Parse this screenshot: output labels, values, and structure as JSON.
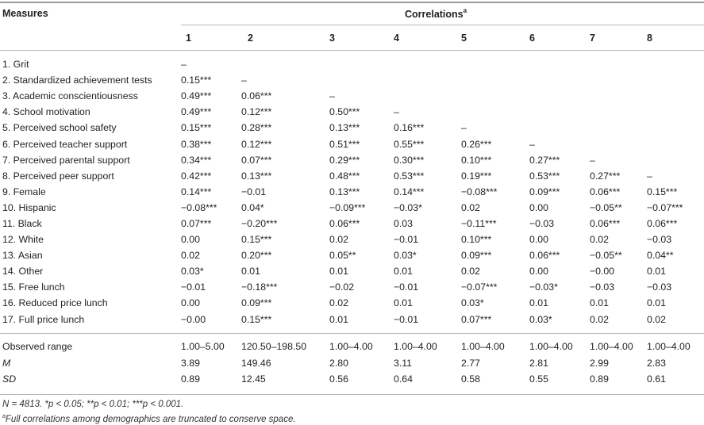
{
  "header": {
    "measures": "Measures",
    "correlations": "Correlations",
    "correlations_sup": "a",
    "columns": [
      "1",
      "2",
      "3",
      "4",
      "5",
      "6",
      "7",
      "8"
    ]
  },
  "rows": [
    {
      "label": "1. Grit",
      "values": [
        "–",
        "",
        "",
        "",
        "",
        "",
        "",
        ""
      ]
    },
    {
      "label": "2. Standardized achievement tests",
      "values": [
        "0.15***",
        "–",
        "",
        "",
        "",
        "",
        "",
        ""
      ]
    },
    {
      "label": "3. Academic conscientiousness",
      "values": [
        "0.49***",
        "0.06***",
        "–",
        "",
        "",
        "",
        "",
        ""
      ]
    },
    {
      "label": "4. School motivation",
      "values": [
        "0.49***",
        "0.12***",
        "0.50***",
        "–",
        "",
        "",
        "",
        ""
      ]
    },
    {
      "label": "5. Perceived school safety",
      "values": [
        "0.15***",
        "0.28***",
        "0.13***",
        "0.16***",
        "–",
        "",
        "",
        ""
      ]
    },
    {
      "label": "6. Perceived teacher support",
      "values": [
        "0.38***",
        "0.12***",
        "0.51***",
        "0.55***",
        "0.26***",
        "–",
        "",
        ""
      ]
    },
    {
      "label": "7. Perceived parental support",
      "values": [
        "0.34***",
        "0.07***",
        "0.29***",
        "0.30***",
        "0.10***",
        "0.27***",
        "–",
        ""
      ]
    },
    {
      "label": "8. Perceived peer support",
      "values": [
        "0.42***",
        "0.13***",
        "0.48***",
        "0.53***",
        "0.19***",
        "0.53***",
        "0.27***",
        "–"
      ]
    },
    {
      "label": "9. Female",
      "values": [
        "0.14***",
        "−0.01",
        "0.13***",
        "0.14***",
        "−0.08***",
        "0.09***",
        "0.06***",
        "0.15***"
      ]
    },
    {
      "label": "10. Hispanic",
      "values": [
        "−0.08***",
        "0.04*",
        "−0.09***",
        "−0.03*",
        "0.02",
        "0.00",
        "−0.05**",
        "−0.07***"
      ]
    },
    {
      "label": "11. Black",
      "values": [
        "0.07***",
        "−0.20***",
        "0.06***",
        "0.03",
        "−0.11***",
        "−0.03",
        "0.06***",
        "0.06***"
      ]
    },
    {
      "label": "12. White",
      "values": [
        "0.00",
        "0.15***",
        "0.02",
        "−0.01",
        "0.10***",
        "0.00",
        "0.02",
        "−0.03"
      ]
    },
    {
      "label": "13. Asian",
      "values": [
        "0.02",
        "0.20***",
        "0.05**",
        "0.03*",
        "0.09***",
        "0.06***",
        "−0.05**",
        "0.04**"
      ]
    },
    {
      "label": "14. Other",
      "values": [
        "0.03*",
        "0.01",
        "0.01",
        "0.01",
        "0.02",
        "0.00",
        "−0.00",
        "0.01"
      ]
    },
    {
      "label": "15. Free lunch",
      "values": [
        "−0.01",
        "−0.18***",
        "−0.02",
        "−0.01",
        "−0.07***",
        "−0.03*",
        "−0.03",
        "−0.03"
      ]
    },
    {
      "label": "16. Reduced price lunch",
      "values": [
        "0.00",
        "0.09***",
        "0.02",
        "0.01",
        "0.03*",
        "0.01",
        "0.01",
        "0.01"
      ]
    },
    {
      "label": "17. Full price lunch",
      "values": [
        "−0.00",
        "0.15***",
        "0.01",
        "−0.01",
        "0.07***",
        "0.03*",
        "0.02",
        "0.02"
      ]
    }
  ],
  "stats": [
    {
      "label": "Observed range",
      "italic": false,
      "values": [
        "1.00–5.00",
        "120.50–198.50",
        "1.00–4.00",
        "1.00–4.00",
        "1.00–4.00",
        "1.00–4.00",
        "1.00–4.00",
        "1.00–4.00"
      ]
    },
    {
      "label": "M",
      "italic": true,
      "values": [
        "3.89",
        "149.46",
        "2.80",
        "3.11",
        "2.77",
        "2.81",
        "2.99",
        "2.83"
      ]
    },
    {
      "label": "SD",
      "italic": true,
      "values": [
        "0.89",
        "12.45",
        "0.56",
        "0.64",
        "0.58",
        "0.55",
        "0.89",
        "0.61"
      ]
    }
  ],
  "notes": {
    "significance": "N = 4813. *p < 0.05; **p < 0.01; ***p < 0.001.",
    "footnote_marker": "a",
    "footnote": "Full correlations among demographics are truncated to conserve space."
  }
}
